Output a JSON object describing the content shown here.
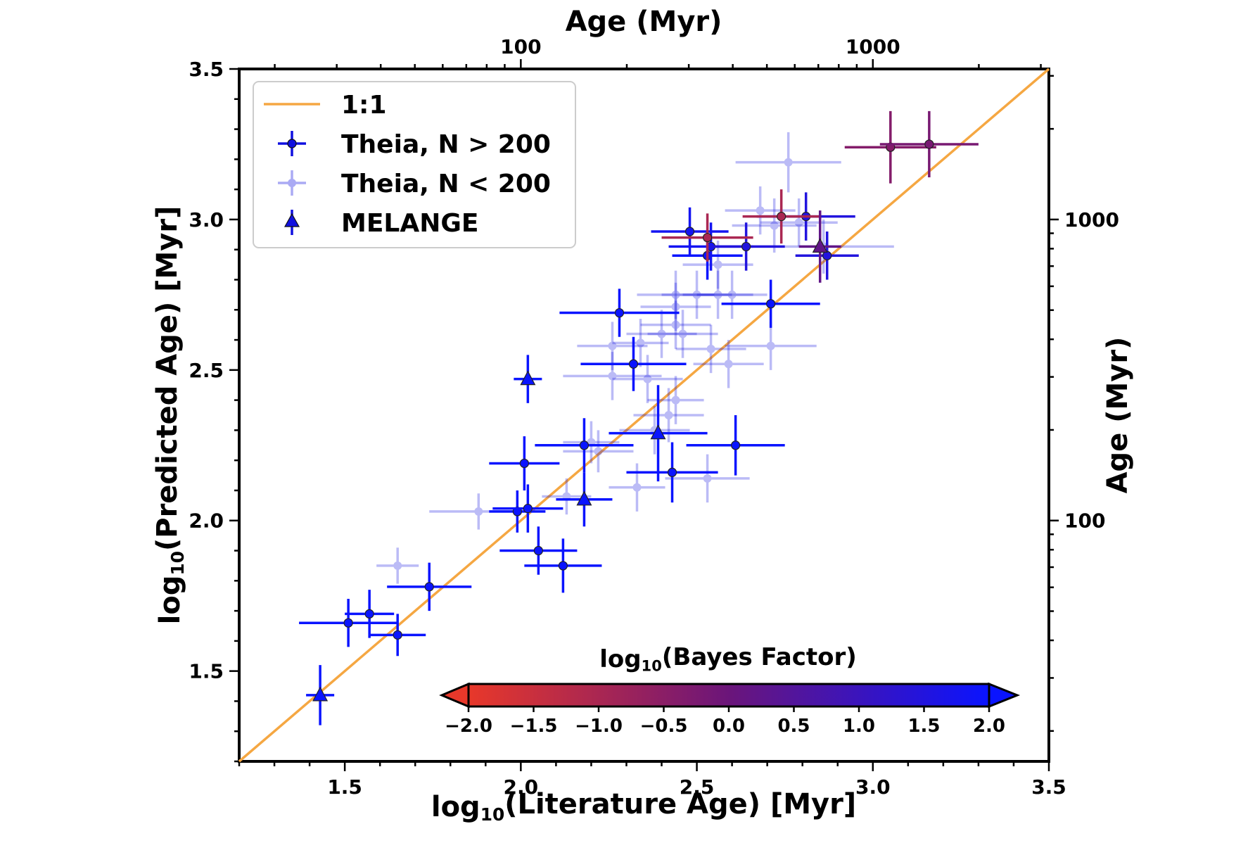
{
  "chart_data": {
    "type": "scatter",
    "xlabel": "log10(Literature Age) [Myr]",
    "ylabel": "log10(Predicted Age) [Myr]",
    "top_xlabel": "Age (Myr)",
    "right_ylabel": "Age (Myr)",
    "xlim": [
      1.2,
      3.5
    ],
    "ylim": [
      1.2,
      3.5
    ],
    "xticks": [
      "1.5",
      "2.0",
      "2.5",
      "3.0",
      "3.5"
    ],
    "yticks": [
      "1.5",
      "2.0",
      "2.5",
      "3.0",
      "3.5"
    ],
    "top_ticks": [
      "100",
      "1000"
    ],
    "right_ticks": [
      "100",
      "1000"
    ],
    "legend_position": "upper-left",
    "legend": {
      "line_label": "1:1",
      "theia_big_label": "Theia, N > 200",
      "theia_small_label": "Theia, N < 200",
      "melange_label": "MELANGE"
    },
    "colorbar": {
      "label": "log10(Bayes Factor)",
      "range": [
        -2.0,
        2.0
      ],
      "ticks": [
        "−2.0",
        "−1.5",
        "−1.0",
        "−0.5",
        "0.0",
        "0.5",
        "1.0",
        "1.5",
        "2.0"
      ],
      "low_color": "#e8382a",
      "mid_color": "#6b157a",
      "high_color": "#0a14ff"
    },
    "colors": {
      "one_to_one": "#f5a742",
      "blue": "#1010e0",
      "light_blue": "#9b9ef0"
    },
    "series": [
      {
        "name": "Theia, N > 200",
        "points": [
          {
            "x": 1.51,
            "y": 1.66,
            "xerr": 0.14,
            "yerr": 0.08,
            "bf": 2.0
          },
          {
            "x": 1.57,
            "y": 1.69,
            "xerr": 0.07,
            "yerr": 0.08,
            "bf": 2.0
          },
          {
            "x": 1.65,
            "y": 1.62,
            "xerr": 0.08,
            "yerr": 0.07,
            "bf": 2.0
          },
          {
            "x": 1.74,
            "y": 1.78,
            "xerr": 0.12,
            "yerr": 0.08,
            "bf": 2.0
          },
          {
            "x": 1.99,
            "y": 2.03,
            "xerr": 0.08,
            "yerr": 0.07,
            "bf": 2.0
          },
          {
            "x": 2.02,
            "y": 2.04,
            "xerr": 0.1,
            "yerr": 0.08,
            "bf": 2.0
          },
          {
            "x": 2.01,
            "y": 2.19,
            "xerr": 0.1,
            "yerr": 0.09,
            "bf": 2.0
          },
          {
            "x": 2.05,
            "y": 1.9,
            "xerr": 0.11,
            "yerr": 0.08,
            "bf": 2.0
          },
          {
            "x": 2.12,
            "y": 1.85,
            "xerr": 0.11,
            "yerr": 0.09,
            "bf": 2.0
          },
          {
            "x": 2.18,
            "y": 2.25,
            "xerr": 0.14,
            "yerr": 0.09,
            "bf": 2.0
          },
          {
            "x": 2.28,
            "y": 2.69,
            "xerr": 0.17,
            "yerr": 0.08,
            "bf": 2.0
          },
          {
            "x": 2.32,
            "y": 2.52,
            "xerr": 0.15,
            "yerr": 0.09,
            "bf": 2.0
          },
          {
            "x": 2.43,
            "y": 2.16,
            "xerr": 0.13,
            "yerr": 0.1,
            "bf": 2.0
          },
          {
            "x": 2.48,
            "y": 2.96,
            "xerr": 0.11,
            "yerr": 0.08,
            "bf": 1.8
          },
          {
            "x": 2.53,
            "y": 2.88,
            "xerr": 0.1,
            "yerr": 0.08,
            "bf": 2.0
          },
          {
            "x": 2.54,
            "y": 2.91,
            "xerr": 0.12,
            "yerr": 0.08,
            "bf": 1.8
          },
          {
            "x": 2.61,
            "y": 2.25,
            "xerr": 0.14,
            "yerr": 0.1,
            "bf": 2.0
          },
          {
            "x": 2.64,
            "y": 2.91,
            "xerr": 0.11,
            "yerr": 0.08,
            "bf": 1.5
          },
          {
            "x": 2.71,
            "y": 2.72,
            "xerr": 0.14,
            "yerr": 0.08,
            "bf": 2.0
          },
          {
            "x": 2.81,
            "y": 3.01,
            "xerr": 0.14,
            "yerr": 0.08,
            "bf": 1.5
          },
          {
            "x": 2.87,
            "y": 2.88,
            "xerr": 0.09,
            "yerr": 0.08,
            "bf": 1.5
          },
          {
            "x": 2.53,
            "y": 2.94,
            "xerr": 0.13,
            "yerr": 0.08,
            "bf": -1.0
          },
          {
            "x": 2.74,
            "y": 3.01,
            "xerr": 0.11,
            "yerr": 0.09,
            "bf": -1.0
          },
          {
            "x": 3.05,
            "y": 3.24,
            "xerr": 0.13,
            "yerr": 0.12,
            "bf": -0.4
          },
          {
            "x": 3.16,
            "y": 3.25,
            "xerr": 0.14,
            "yerr": 0.11,
            "bf": -0.2
          }
        ]
      },
      {
        "name": "Theia, N < 200",
        "points": [
          {
            "x": 1.65,
            "y": 1.85,
            "xerr": 0.06,
            "yerr": 0.06
          },
          {
            "x": 1.88,
            "y": 2.03,
            "xerr": 0.14,
            "yerr": 0.06
          },
          {
            "x": 2.13,
            "y": 2.08,
            "xerr": 0.07,
            "yerr": 0.06
          },
          {
            "x": 2.2,
            "y": 2.26,
            "xerr": 0.08,
            "yerr": 0.07
          },
          {
            "x": 2.22,
            "y": 2.23,
            "xerr": 0.1,
            "yerr": 0.07
          },
          {
            "x": 2.33,
            "y": 2.11,
            "xerr": 0.08,
            "yerr": 0.08
          },
          {
            "x": 2.26,
            "y": 2.58,
            "xerr": 0.1,
            "yerr": 0.08
          },
          {
            "x": 2.26,
            "y": 2.48,
            "xerr": 0.14,
            "yerr": 0.08
          },
          {
            "x": 2.34,
            "y": 2.59,
            "xerr": 0.08,
            "yerr": 0.08
          },
          {
            "x": 2.36,
            "y": 2.47,
            "xerr": 0.1,
            "yerr": 0.08
          },
          {
            "x": 2.38,
            "y": 2.3,
            "xerr": 0.1,
            "yerr": 0.08
          },
          {
            "x": 2.42,
            "y": 2.35,
            "xerr": 0.1,
            "yerr": 0.09
          },
          {
            "x": 2.44,
            "y": 2.4,
            "xerr": 0.08,
            "yerr": 0.08
          },
          {
            "x": 2.4,
            "y": 2.62,
            "xerr": 0.1,
            "yerr": 0.08
          },
          {
            "x": 2.44,
            "y": 2.65,
            "xerr": 0.1,
            "yerr": 0.08
          },
          {
            "x": 2.44,
            "y": 2.71,
            "xerr": 0.1,
            "yerr": 0.08
          },
          {
            "x": 2.46,
            "y": 2.62,
            "xerr": 0.1,
            "yerr": 0.08
          },
          {
            "x": 2.44,
            "y": 2.75,
            "xerr": 0.11,
            "yerr": 0.08
          },
          {
            "x": 2.5,
            "y": 2.75,
            "xerr": 0.1,
            "yerr": 0.08
          },
          {
            "x": 2.54,
            "y": 2.57,
            "xerr": 0.1,
            "yerr": 0.08
          },
          {
            "x": 2.56,
            "y": 2.75,
            "xerr": 0.1,
            "yerr": 0.08
          },
          {
            "x": 2.6,
            "y": 2.75,
            "xerr": 0.1,
            "yerr": 0.08
          },
          {
            "x": 2.56,
            "y": 2.85,
            "xerr": 0.1,
            "yerr": 0.08
          },
          {
            "x": 2.59,
            "y": 2.52,
            "xerr": 0.1,
            "yerr": 0.08
          },
          {
            "x": 2.53,
            "y": 2.14,
            "xerr": 0.12,
            "yerr": 0.08
          },
          {
            "x": 2.71,
            "y": 2.58,
            "xerr": 0.13,
            "yerr": 0.08
          },
          {
            "x": 2.68,
            "y": 3.03,
            "xerr": 0.1,
            "yerr": 0.08
          },
          {
            "x": 2.72,
            "y": 2.98,
            "xerr": 0.12,
            "yerr": 0.09
          },
          {
            "x": 2.79,
            "y": 2.99,
            "xerr": 0.11,
            "yerr": 0.08
          },
          {
            "x": 2.76,
            "y": 3.19,
            "xerr": 0.15,
            "yerr": 0.1
          },
          {
            "x": 2.86,
            "y": 2.91,
            "xerr": 0.2,
            "yerr": 0.09
          }
        ]
      },
      {
        "name": "MELANGE",
        "points": [
          {
            "x": 1.43,
            "y": 1.42,
            "xerr": 0.04,
            "yerr": 0.1,
            "bf": 2.0
          },
          {
            "x": 2.02,
            "y": 2.47,
            "xerr": 0.04,
            "yerr": 0.08,
            "bf": 2.0
          },
          {
            "x": 2.18,
            "y": 2.07,
            "xerr": 0.08,
            "yerr": 0.09,
            "bf": 2.0
          },
          {
            "x": 2.39,
            "y": 2.29,
            "xerr": 0.14,
            "yerr": 0.16,
            "bf": 2.0
          },
          {
            "x": 2.85,
            "y": 2.91,
            "xerr": 0.06,
            "yerr": 0.12,
            "bf": 0.2
          }
        ]
      }
    ]
  }
}
